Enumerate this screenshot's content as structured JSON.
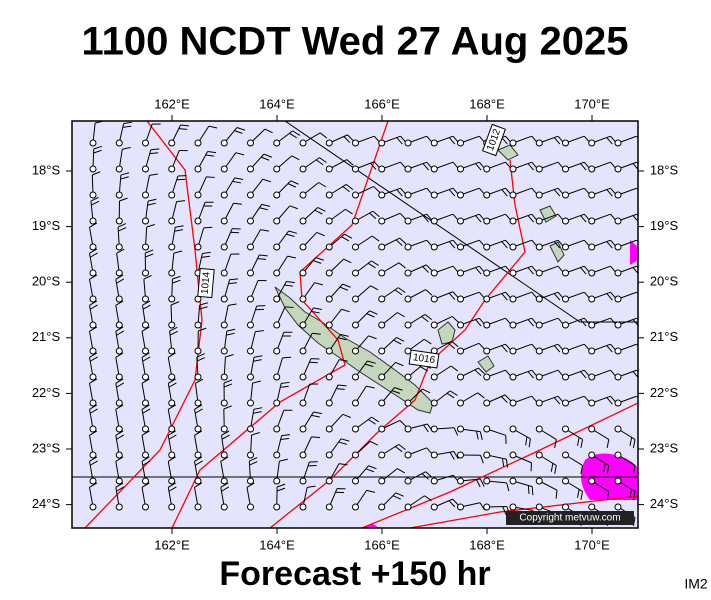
{
  "title": "1100 NCDT Wed 27 Aug 2025",
  "subtitle": "Forecast +150 hr",
  "code": "IM2",
  "copyright": "Copyright metvuw.com",
  "longitude_labels": [
    "162°E",
    "164°E",
    "166°E",
    "168°E",
    "170°E"
  ],
  "latitude_labels": [
    "18°S",
    "19°S",
    "20°S",
    "21°S",
    "22°S",
    "23°S",
    "24°S"
  ],
  "isobar_labels": [
    "1014",
    "1016",
    "1012"
  ]
}
